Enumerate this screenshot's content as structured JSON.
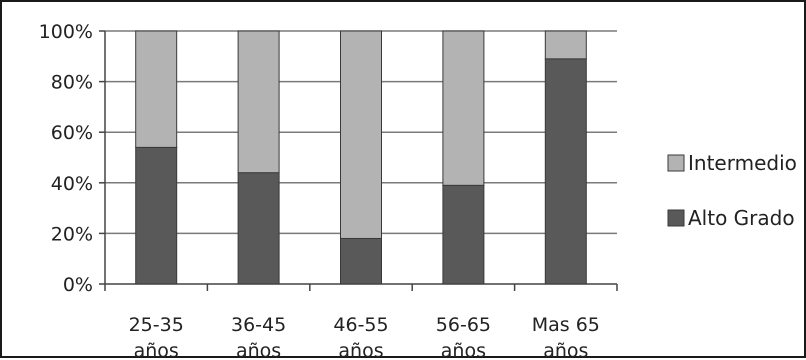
{
  "chart_data": {
    "type": "bar",
    "stacked": true,
    "categories": [
      "25-35 años",
      "36-45 años",
      "46-55 años",
      "56-65 años",
      "Mas 65 años"
    ],
    "category_lines": [
      [
        "25-35",
        "años"
      ],
      [
        "36-45",
        "años"
      ],
      [
        "46-55",
        "años"
      ],
      [
        "56-65",
        "años"
      ],
      [
        "Mas 65",
        "años"
      ]
    ],
    "series": [
      {
        "name": "Alto Grado",
        "values": [
          54,
          44,
          18,
          39,
          89
        ],
        "color": "#595959"
      },
      {
        "name": "Intermedio",
        "values": [
          46,
          56,
          82,
          61,
          11
        ],
        "color": "#b3b3b3"
      }
    ],
    "title": "",
    "xlabel": "",
    "ylabel": "",
    "ylim": [
      0,
      100
    ],
    "yticks": [
      "0%",
      "20%",
      "40%",
      "60%",
      "80%",
      "100%"
    ],
    "grid": true,
    "legend_position": "right",
    "legend_order": [
      "Intermedio",
      "Alto Grado"
    ]
  }
}
